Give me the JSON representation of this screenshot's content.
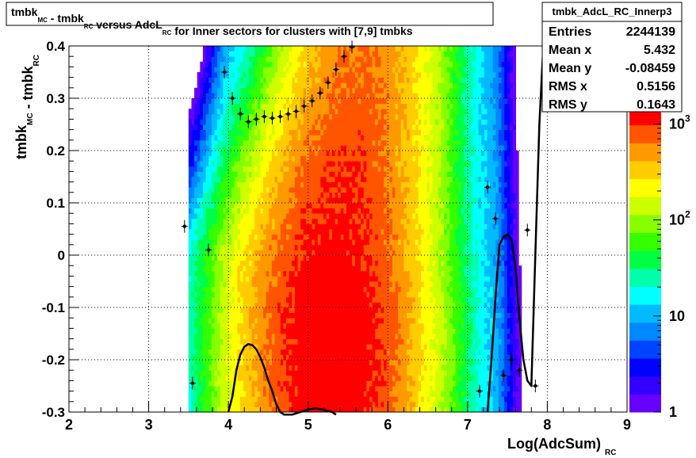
{
  "chart_data": {
    "type": "heatmap",
    "title": {
      "parts": [
        {
          "t": "tmbk",
          "sub": false
        },
        {
          "t": "MC",
          "sub": true
        },
        {
          "t": " - tmbk",
          "sub": false
        },
        {
          "t": "RC",
          "sub": true
        },
        {
          "t": " versus AdcL",
          "sub": false
        },
        {
          "t": "RC",
          "sub": true
        },
        {
          "t": " for Inner sectors for clusters with [7,9] tmbks",
          "sub": false
        }
      ]
    },
    "xlabel": {
      "main": "Log(AdcSum)",
      "sub": "RC"
    },
    "ylabel": {
      "p1": "tmbk",
      "s1": "MC",
      "p2": " - tmbk",
      "s2": "RC"
    },
    "xlim": [
      2,
      9
    ],
    "ylim": [
      -0.3,
      0.4
    ],
    "x_ticks": [
      "2",
      "3",
      "4",
      "5",
      "6",
      "7",
      "8",
      "9"
    ],
    "y_ticks": [
      "-0.3",
      "-0.2",
      "-0.1",
      "0",
      "0.1",
      "0.2",
      "0.3",
      "0.4"
    ],
    "grid": true,
    "z_scale": "log",
    "z_ticks": [
      {
        "value": 1,
        "base": "1",
        "exp": ""
      },
      {
        "value": 10,
        "base": "10",
        "exp": ""
      },
      {
        "value": 100,
        "base": "10",
        "exp": "2"
      },
      {
        "value": 1000,
        "base": "10",
        "exp": "3"
      }
    ],
    "z_max": 1500,
    "palette": [
      "#6600ff",
      "#3300ff",
      "#0000ff",
      "#0044ff",
      "#0088ff",
      "#00bbff",
      "#00ffff",
      "#00ffaa",
      "#00ff44",
      "#33ff00",
      "#88ff00",
      "#ccff00",
      "#ffff00",
      "#ffcc00",
      "#ff9900",
      "#ff5500",
      "#ff0000"
    ],
    "stats_box": {
      "name": "tmbk_AdcL_RC_Innerp3",
      "rows": [
        {
          "label": "Entries",
          "value": "2244139"
        },
        {
          "label": "Mean x",
          "value": "5.432"
        },
        {
          "label": "Mean y",
          "value": "-0.08459"
        },
        {
          "label": "RMS x",
          "value": "0.5156"
        },
        {
          "label": "RMS y",
          "value": "0.1643"
        }
      ]
    },
    "profile_points": {
      "x": [
        3.45,
        3.55,
        3.75,
        3.95,
        4.05,
        4.15,
        4.25,
        4.35,
        4.45,
        4.55,
        4.65,
        4.75,
        4.85,
        4.95,
        5.05,
        5.15,
        5.25,
        5.35,
        5.45,
        5.55,
        5.65,
        5.75,
        5.85,
        5.95,
        7.15,
        7.25,
        7.35,
        7.45,
        7.55,
        7.65,
        7.75,
        7.85
      ],
      "y": [
        0.055,
        -0.245,
        0.01,
        0.35,
        0.3,
        0.27,
        0.255,
        0.26,
        0.265,
        0.262,
        0.265,
        0.27,
        0.275,
        0.285,
        0.295,
        0.31,
        0.33,
        0.355,
        0.38,
        0.398,
        0.405,
        0.41,
        0.42,
        0.43,
        -0.26,
        0.13,
        0.07,
        -0.23,
        -0.2,
        -0.22,
        0.048,
        -0.25
      ]
    },
    "fit_curve": {
      "x": [
        4.0,
        4.05,
        4.1,
        4.15,
        4.2,
        4.25,
        4.3,
        4.35,
        4.4,
        4.45,
        4.5,
        4.55,
        4.6,
        4.65,
        4.7,
        4.8,
        4.9,
        5.0,
        5.1,
        5.2,
        5.3,
        5.35,
        7.25,
        7.3,
        7.35,
        7.4,
        7.45,
        7.5,
        7.55,
        7.6,
        7.65,
        7.7,
        7.75,
        7.8,
        7.85,
        7.9,
        7.95,
        8.0
      ],
      "y": [
        -0.3,
        -0.27,
        -0.22,
        -0.19,
        -0.175,
        -0.17,
        -0.172,
        -0.18,
        -0.195,
        -0.215,
        -0.24,
        -0.26,
        -0.285,
        -0.3,
        -0.305,
        -0.305,
        -0.3,
        -0.295,
        -0.293,
        -0.296,
        -0.3,
        -0.305,
        -0.3,
        -0.2,
        -0.08,
        0.02,
        0.035,
        0.04,
        0.03,
        -0.02,
        -0.12,
        -0.2,
        -0.24,
        -0.25,
        0.0,
        0.25,
        0.4,
        0.45
      ]
    }
  }
}
